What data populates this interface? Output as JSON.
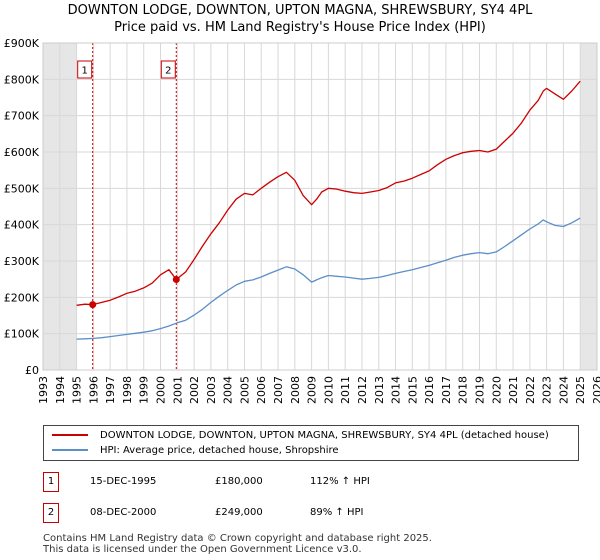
{
  "header": {
    "title_line1": "DOWNTON LODGE, DOWNTON, UPTON MAGNA, SHREWSBURY, SY4 4PL",
    "title_line2": "Price paid vs. HM Land Registry's House Price Index (HPI)"
  },
  "chart_data": {
    "type": "line",
    "title": "DOWNTON LODGE, DOWNTON, UPTON MAGNA, SHREWSBURY, SY4 4PL — Price paid vs. HM Land Registry's House Price Index (HPI)",
    "xlabel": "",
    "ylabel": "",
    "xlim": [
      1993,
      2026
    ],
    "ylim": [
      0,
      900000
    ],
    "x_ticks": [
      1993,
      1994,
      1995,
      1996,
      1997,
      1998,
      1999,
      2000,
      2001,
      2002,
      2003,
      2004,
      2005,
      2006,
      2007,
      2008,
      2009,
      2010,
      2011,
      2012,
      2013,
      2014,
      2015,
      2016,
      2017,
      2018,
      2019,
      2020,
      2021,
      2022,
      2023,
      2024,
      2025,
      2026
    ],
    "y_ticks": [
      {
        "value": 0,
        "label": "£0"
      },
      {
        "value": 100000,
        "label": "£100K"
      },
      {
        "value": 200000,
        "label": "£200K"
      },
      {
        "value": 300000,
        "label": "£300K"
      },
      {
        "value": 400000,
        "label": "£400K"
      },
      {
        "value": 500000,
        "label": "£500K"
      },
      {
        "value": 600000,
        "label": "£600K"
      },
      {
        "value": 700000,
        "label": "£700K"
      },
      {
        "value": 800000,
        "label": "£800K"
      },
      {
        "value": 900000,
        "label": "£900K"
      }
    ],
    "grid": true,
    "shaded_ranges": [
      [
        1993,
        1995.0
      ],
      [
        2025.0,
        2026
      ]
    ],
    "series": [
      {
        "name": "DOWNTON LODGE, DOWNTON, UPTON MAGNA, SHREWSBURY, SY4 4PL (detached house)",
        "color": "#cc0000",
        "x": [
          1995.0,
          1995.5,
          1995.96,
          1996.5,
          1997.0,
          1997.5,
          1998.0,
          1998.5,
          1999.0,
          1999.5,
          2000.0,
          2000.5,
          2000.94,
          2001.5,
          2002.0,
          2002.5,
          2003.0,
          2003.5,
          2004.0,
          2004.5,
          2005.0,
          2005.5,
          2006.0,
          2006.5,
          2007.0,
          2007.5,
          2008.0,
          2008.5,
          2009.0,
          2009.3,
          2009.6,
          2010.0,
          2010.5,
          2011.0,
          2011.5,
          2012.0,
          2012.5,
          2013.0,
          2013.5,
          2014.0,
          2014.5,
          2015.0,
          2015.5,
          2016.0,
          2016.5,
          2017.0,
          2017.5,
          2018.0,
          2018.5,
          2019.0,
          2019.5,
          2020.0,
          2020.5,
          2021.0,
          2021.5,
          2022.0,
          2022.5,
          2022.8,
          2023.0,
          2023.5,
          2024.0,
          2024.5,
          2025.0
        ],
        "y": [
          178000,
          181000,
          180000,
          186000,
          192000,
          201000,
          211000,
          217000,
          226000,
          239000,
          262000,
          276000,
          249000,
          270000,
          304000,
          341000,
          375000,
          405000,
          440000,
          470000,
          486000,
          482000,
          500000,
          517000,
          532000,
          544000,
          522000,
          480000,
          455000,
          470000,
          490000,
          500000,
          498000,
          492000,
          488000,
          486000,
          490000,
          494000,
          502000,
          515000,
          520000,
          528000,
          538000,
          548000,
          565000,
          580000,
          590000,
          598000,
          602000,
          604000,
          600000,
          608000,
          630000,
          652000,
          680000,
          715000,
          742000,
          768000,
          775000,
          760000,
          745000,
          768000,
          795000
        ]
      },
      {
        "name": "HPI: Average price, detached house, Shropshire",
        "color": "#5b8fc9",
        "x": [
          1995.0,
          1995.5,
          1996.0,
          1996.5,
          1997.0,
          1997.5,
          1998.0,
          1998.5,
          1999.0,
          1999.5,
          2000.0,
          2000.5,
          2001.0,
          2001.5,
          2002.0,
          2002.5,
          2003.0,
          2003.5,
          2004.0,
          2004.5,
          2005.0,
          2005.5,
          2006.0,
          2006.5,
          2007.0,
          2007.5,
          2008.0,
          2008.5,
          2009.0,
          2009.3,
          2009.6,
          2010.0,
          2010.5,
          2011.0,
          2011.5,
          2012.0,
          2012.5,
          2013.0,
          2013.5,
          2014.0,
          2014.5,
          2015.0,
          2015.5,
          2016.0,
          2016.5,
          2017.0,
          2017.5,
          2018.0,
          2018.5,
          2019.0,
          2019.5,
          2020.0,
          2020.5,
          2021.0,
          2021.5,
          2022.0,
          2022.5,
          2022.8,
          2023.0,
          2023.5,
          2024.0,
          2024.5,
          2025.0
        ],
        "y": [
          85000,
          86000,
          87000,
          89000,
          92000,
          95000,
          98000,
          101000,
          104000,
          108000,
          114000,
          121000,
          130000,
          137000,
          151000,
          167000,
          186000,
          203000,
          219000,
          234000,
          244000,
          248000,
          256000,
          266000,
          275000,
          284000,
          278000,
          262000,
          242000,
          248000,
          254000,
          260000,
          258000,
          256000,
          253000,
          250000,
          252000,
          255000,
          260000,
          266000,
          271000,
          276000,
          282000,
          288000,
          295000,
          302000,
          310000,
          316000,
          320000,
          323000,
          320000,
          325000,
          340000,
          356000,
          372000,
          388000,
          402000,
          413000,
          408000,
          398000,
          395000,
          405000,
          418000
        ]
      }
    ],
    "annotations": [
      {
        "label": "1",
        "x": 1995.96,
        "y": 180000,
        "color": "#cc0000"
      },
      {
        "label": "2",
        "x": 2000.94,
        "y": 249000,
        "color": "#cc0000"
      }
    ]
  },
  "legend": {
    "items": [
      {
        "label": "DOWNTON LODGE, DOWNTON, UPTON MAGNA, SHREWSBURY, SY4 4PL (detached house)",
        "color": "#cc0000"
      },
      {
        "label": "HPI: Average price, detached house, Shropshire",
        "color": "#5b8fc9"
      }
    ]
  },
  "transactions": [
    {
      "num": "1",
      "date": "15-DEC-1995",
      "price": "£180,000",
      "hpi": "112% ↑ HPI"
    },
    {
      "num": "2",
      "date": "08-DEC-2000",
      "price": "£249,000",
      "hpi": "89% ↑ HPI"
    }
  ],
  "footer": {
    "line1": "Contains HM Land Registry data © Crown copyright and database right 2025.",
    "line2": "This data is licensed under the Open Government Licence v3.0."
  }
}
